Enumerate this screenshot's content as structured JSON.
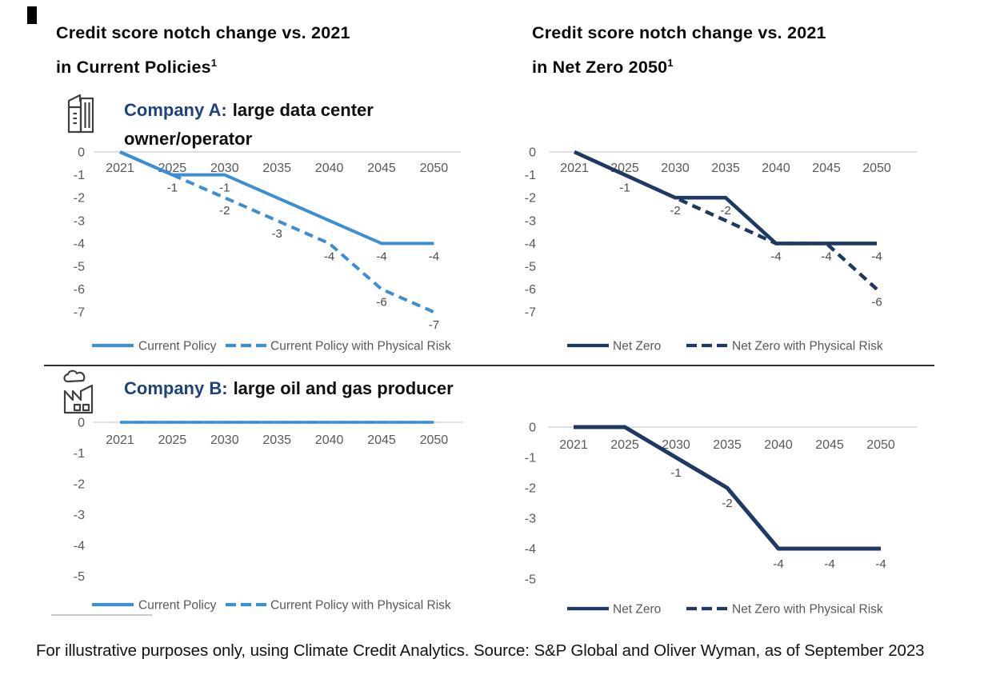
{
  "column_titles": {
    "left": {
      "line1": "Credit score notch change vs. 2021",
      "line2": "in Current Policies",
      "superscript": "1"
    },
    "right": {
      "line1": "Credit score notch change vs. 2021",
      "line2": "in Net Zero 2050",
      "superscript": "1"
    }
  },
  "companies": {
    "a": {
      "label": "Company A:",
      "description": "large data center owner/operator",
      "icon": "office-buildings-icon"
    },
    "b": {
      "label": "Company B:",
      "description": "large oil and gas producer",
      "icon": "factory-icon"
    }
  },
  "footer": {
    "text": "For illustrative purposes only, using Climate Credit Analytics. Source: S&P Global and Oliver Wyman, as of September 2023"
  },
  "colors": {
    "light_blue": "#3E8FD1",
    "navy": "#1F3864",
    "company_label_blue": "#1F4379",
    "axis_text": "#595959",
    "data_label": "#4A4A4A",
    "gridline": "#D6D6D6"
  },
  "chart_data": [
    {
      "id": "a-current",
      "type": "line",
      "company": "Company A",
      "scenario": "Current Policies",
      "x": [
        2021,
        2025,
        2030,
        2035,
        2040,
        2045,
        2050
      ],
      "yticks": [
        0,
        -1,
        -2,
        -3,
        -4,
        -5,
        -6,
        -7
      ],
      "ylim": [
        -7,
        0
      ],
      "series": [
        {
          "name": "Current Policy",
          "dash": false,
          "color": "#3E8FD1",
          "values": [
            0,
            -1,
            -1,
            -2,
            -3,
            -4,
            -4
          ]
        },
        {
          "name": "Current Policy with Physical Risk",
          "dash": true,
          "color": "#3E8FD1",
          "values": [
            0,
            -1,
            -2,
            -3,
            -4,
            -6,
            -7
          ]
        }
      ],
      "point_labels": [
        {
          "series": 0,
          "x": 2025,
          "text": "-1"
        },
        {
          "series": 0,
          "x": 2030,
          "text": "-1"
        },
        {
          "series": 0,
          "x": 2045,
          "text": "-4"
        },
        {
          "series": 0,
          "x": 2050,
          "text": "-4"
        },
        {
          "series": 1,
          "x": 2030,
          "text": "-2"
        },
        {
          "series": 1,
          "x": 2035,
          "text": "-3"
        },
        {
          "series": 1,
          "x": 2040,
          "text": "-4"
        },
        {
          "series": 1,
          "x": 2045,
          "text": "-6"
        },
        {
          "series": 1,
          "x": 2050,
          "text": "-7"
        }
      ],
      "legend": [
        "Current Policy",
        "Current Policy with Physical Risk"
      ]
    },
    {
      "id": "a-netzero",
      "type": "line",
      "company": "Company A",
      "scenario": "Net Zero 2050",
      "x": [
        2021,
        2025,
        2030,
        2035,
        2040,
        2045,
        2050
      ],
      "yticks": [
        0,
        -1,
        -2,
        -3,
        -4,
        -5,
        -6,
        -7
      ],
      "ylim": [
        -7,
        0
      ],
      "series": [
        {
          "name": "Net Zero",
          "dash": false,
          "color": "#1F3864",
          "values": [
            0,
            -1,
            -2,
            -2,
            -4,
            -4,
            -4
          ]
        },
        {
          "name": "Net Zero with Physical Risk",
          "dash": true,
          "color": "#1F3864",
          "values": [
            0,
            -1,
            -2,
            -3,
            -4,
            -4,
            -6
          ]
        }
      ],
      "point_labels": [
        {
          "series": 0,
          "x": 2025,
          "text": "-1"
        },
        {
          "series": 0,
          "x": 2030,
          "text": "-2"
        },
        {
          "series": 0,
          "x": 2035,
          "text": "-2"
        },
        {
          "series": 0,
          "x": 2040,
          "text": "-4"
        },
        {
          "series": 0,
          "x": 2045,
          "text": "-4"
        },
        {
          "series": 0,
          "x": 2050,
          "text": "-4"
        },
        {
          "series": 1,
          "x": 2050,
          "text": "-6"
        }
      ],
      "legend": [
        "Net Zero",
        "Net Zero with Physical Risk"
      ]
    },
    {
      "id": "b-current",
      "type": "line",
      "company": "Company B",
      "scenario": "Current Policies",
      "x": [
        2021,
        2025,
        2030,
        2035,
        2040,
        2045,
        2050
      ],
      "yticks": [
        0,
        -1,
        -2,
        -3,
        -4,
        -5
      ],
      "ylim": [
        -5,
        0
      ],
      "series": [
        {
          "name": "Current Policy",
          "dash": false,
          "color": "#3E8FD1",
          "values": [
            0,
            0,
            0,
            0,
            0,
            0,
            0
          ]
        },
        {
          "name": "Current Policy with Physical Risk",
          "dash": true,
          "color": "#3E8FD1",
          "values": [
            0,
            0,
            0,
            0,
            0,
            0,
            0
          ]
        }
      ],
      "point_labels": [],
      "legend": [
        "Current Policy",
        "Current Policy with Physical Risk"
      ]
    },
    {
      "id": "b-netzero",
      "type": "line",
      "company": "Company B",
      "scenario": "Net Zero 2050",
      "x": [
        2021,
        2025,
        2030,
        2035,
        2040,
        2045,
        2050
      ],
      "yticks": [
        0,
        -1,
        -2,
        -3,
        -4,
        -5
      ],
      "ylim": [
        -5,
        0
      ],
      "series": [
        {
          "name": "Net Zero",
          "dash": false,
          "color": "#1F3864",
          "values": [
            0,
            0,
            -1,
            -2,
            -4,
            -4,
            -4
          ]
        },
        {
          "name": "Net Zero with Physical Risk",
          "dash": true,
          "color": "#1F3864",
          "values": [
            0,
            0,
            -1,
            -2,
            -4,
            -4,
            -4
          ]
        }
      ],
      "point_labels": [
        {
          "series": 0,
          "x": 2030,
          "text": "-1"
        },
        {
          "series": 0,
          "x": 2035,
          "text": "-2"
        },
        {
          "series": 0,
          "x": 2040,
          "text": "-4"
        },
        {
          "series": 0,
          "x": 2045,
          "text": "-4"
        },
        {
          "series": 0,
          "x": 2050,
          "text": "-4"
        }
      ],
      "legend": [
        "Net Zero",
        "Net Zero with Physical Risk"
      ]
    }
  ]
}
